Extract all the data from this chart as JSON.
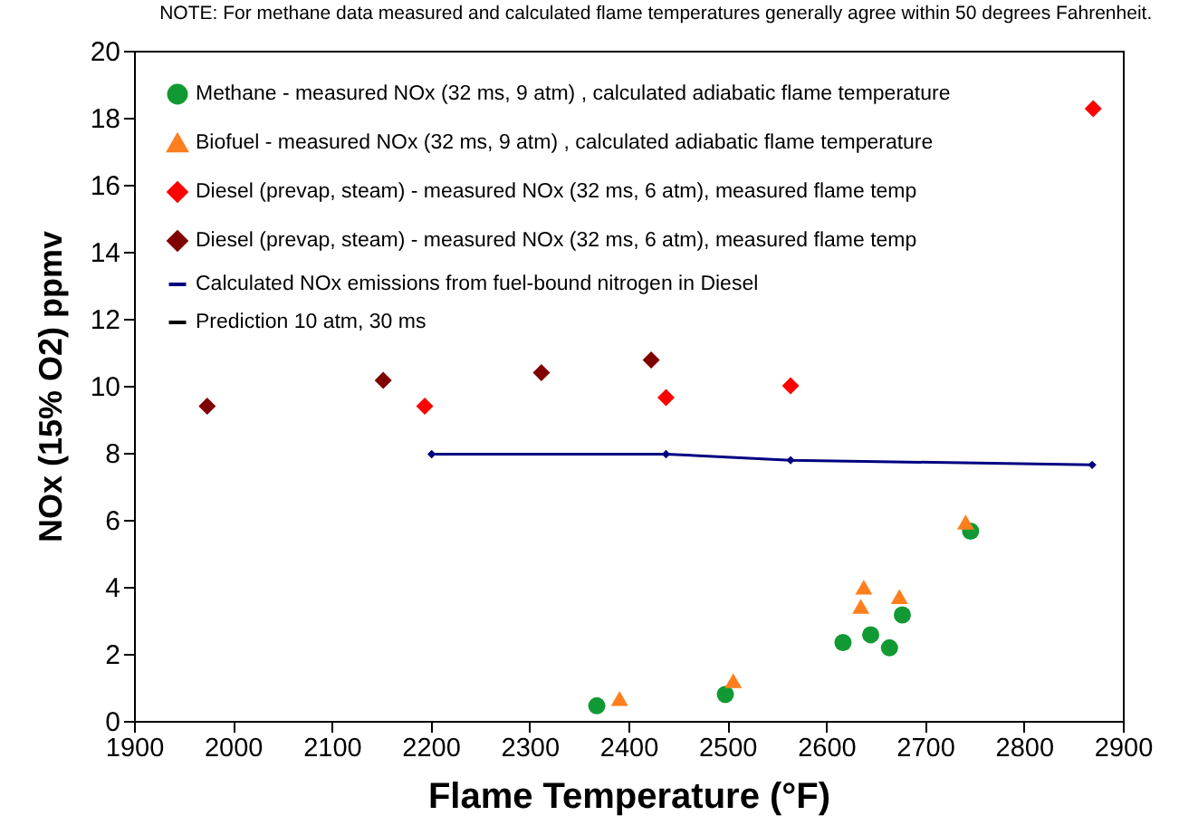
{
  "chart_data": {
    "type": "scatter",
    "xlabel": "Flame Temperature (°F)",
    "ylabel": "NOx (15% O2) ppmv",
    "annotations": [
      "NOTE:  For methane data measured and calculated flame temperatures generally agree within 50 degrees Fahrenheit."
    ],
    "xlim": [
      1900,
      2900
    ],
    "xticks": [
      1900,
      2000,
      2100,
      2200,
      2300,
      2400,
      2500,
      2600,
      2700,
      2800,
      2900
    ],
    "ylim": [
      0,
      20
    ],
    "yticks": [
      0,
      2,
      4,
      6,
      8,
      10,
      12,
      14,
      16,
      18,
      20
    ],
    "grid": false,
    "legend": "top left",
    "series": [
      {
        "name": "Methane - measured NOx (32 ms, 9 atm)  , calculated adiabatic flame temperature",
        "marker": "circle",
        "color": "#119933",
        "x": [
          2368,
          2498,
          2617,
          2645,
          2664,
          2677,
          2746
        ],
        "values": [
          0.45,
          0.79,
          2.34,
          2.57,
          2.18,
          3.16,
          5.66
        ]
      },
      {
        "name": "Biofuel - measured NOx (32 ms, 9 atm)  , calculated adiabatic flame temperature",
        "marker": "triangle",
        "color": "#ff7f1e",
        "x": [
          2391,
          2506,
          2638,
          2635,
          2674,
          2741
        ],
        "values": [
          0.67,
          1.2,
          3.99,
          3.42,
          3.71,
          5.93
        ]
      },
      {
        "name": "Diesel (prevap, steam) - measured NOx (32 ms, 6 atm), measured flame temp",
        "type": "scatter",
        "marker": "diamond",
        "color": "#ff0000",
        "x": [
          2194,
          2438,
          2564,
          2870
        ],
        "values": [
          9.39,
          9.65,
          10.0,
          18.27
        ]
      },
      {
        "name": "Diesel (prevap, steam) - measured NOx (32 ms, 6 atm), measured flame temp",
        "type": "scatter",
        "marker": "diamond",
        "color": "#800000",
        "x": [
          1974,
          2152,
          2312,
          2423
        ],
        "values": [
          9.39,
          10.16,
          10.39,
          10.77
        ]
      },
      {
        "name": "Calculated NOx emissions from fuel-bound nitrogen in Diesel",
        "type": "line",
        "marker": "diamond",
        "color": "#000080",
        "x": [
          2201,
          2438,
          2564,
          2869
        ],
        "values": [
          7.96,
          7.96,
          7.78,
          7.64
        ]
      },
      {
        "name": "Prediction 10 atm, 30 ms",
        "type": "line",
        "marker": "none",
        "color": "#000000"
      }
    ]
  }
}
